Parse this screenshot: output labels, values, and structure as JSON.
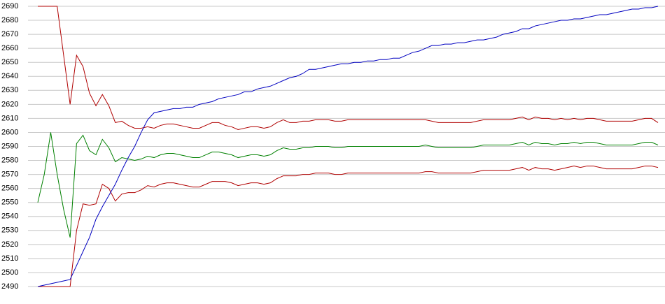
{
  "chart_data": {
    "type": "line",
    "categories": [
      null,
      null,
      null,
      null,
      null,
      null,
      null,
      null,
      null,
      null,
      null,
      null,
      null,
      null,
      null,
      null,
      null,
      null,
      null,
      null,
      null,
      null,
      null,
      null,
      null,
      null,
      null,
      null,
      null,
      null,
      null,
      null,
      null,
      null,
      null,
      null,
      null,
      null,
      null,
      null,
      null,
      null,
      null,
      null,
      null,
      null,
      null,
      null,
      null,
      null,
      null,
      null,
      null,
      null,
      null,
      null,
      null,
      null,
      null,
      null,
      null,
      null,
      null,
      null,
      null,
      null,
      null,
      null,
      null,
      null,
      null,
      null,
      null,
      null,
      null,
      null,
      null,
      null,
      null,
      null,
      null,
      null,
      null,
      null,
      null,
      null,
      null,
      null,
      null,
      null,
      null,
      null,
      null,
      null,
      null,
      null,
      null
    ],
    "series": [
      {
        "color": "#b00000",
        "values": [
          2690,
          2690,
          2690,
          2690,
          2655,
          2620,
          2655,
          2647,
          2628,
          2619,
          2627,
          2619,
          2607,
          2608,
          2605,
          2603,
          2603,
          2604,
          2603,
          2605,
          2606,
          2606,
          2605,
          2604,
          2603,
          2603,
          2605,
          2607,
          2607,
          2605,
          2604,
          2602,
          2603,
          2604,
          2604,
          2603,
          2604,
          2607,
          2609,
          2607,
          2607,
          2608,
          2608,
          2609,
          2609,
          2609,
          2608,
          2608,
          2609,
          2609,
          2609,
          2609,
          2609,
          2609,
          2609,
          2609,
          2609,
          2609,
          2609,
          2609,
          2609,
          2608,
          2607,
          2607,
          2607,
          2607,
          2607,
          2607,
          2608,
          2609,
          2609,
          2609,
          2609,
          2609,
          2610,
          2611,
          2609,
          2611,
          2610,
          2610,
          2609,
          2610,
          2609,
          2610,
          2609,
          2610,
          2610,
          2609,
          2608,
          2608,
          2608,
          2608,
          2608,
          2609,
          2610,
          2610,
          2607
        ]
      },
      {
        "color": "#008000",
        "values": [
          2550,
          2570,
          2600,
          2570,
          2545,
          2525,
          2592,
          2598,
          2587,
          2584,
          2595,
          2589,
          2579,
          2582,
          2581,
          2580,
          2581,
          2583,
          2582,
          2584,
          2585,
          2585,
          2584,
          2583,
          2582,
          2582,
          2584,
          2586,
          2586,
          2585,
          2584,
          2582,
          2583,
          2584,
          2584,
          2583,
          2584,
          2587,
          2589,
          2588,
          2588,
          2589,
          2589,
          2590,
          2590,
          2590,
          2589,
          2589,
          2590,
          2590,
          2590,
          2590,
          2590,
          2590,
          2590,
          2590,
          2590,
          2590,
          2590,
          2590,
          2591,
          2590,
          2589,
          2589,
          2589,
          2589,
          2589,
          2589,
          2590,
          2591,
          2591,
          2591,
          2591,
          2591,
          2592,
          2593,
          2591,
          2593,
          2592,
          2592,
          2591,
          2592,
          2592,
          2593,
          2592,
          2593,
          2593,
          2592,
          2591,
          2591,
          2591,
          2591,
          2591,
          2592,
          2593,
          2593,
          2591
        ]
      },
      {
        "color": "#b00000",
        "values": [
          2490,
          2490,
          2490,
          2490,
          2490,
          2490,
          2530,
          2549,
          2548,
          2549,
          2563,
          2560,
          2551,
          2556,
          2557,
          2557,
          2559,
          2562,
          2561,
          2563,
          2564,
          2564,
          2563,
          2562,
          2561,
          2561,
          2563,
          2565,
          2565,
          2565,
          2564,
          2562,
          2563,
          2564,
          2564,
          2563,
          2564,
          2567,
          2569,
          2569,
          2569,
          2570,
          2570,
          2571,
          2571,
          2571,
          2570,
          2570,
          2571,
          2571,
          2571,
          2571,
          2571,
          2571,
          2571,
          2571,
          2571,
          2571,
          2571,
          2571,
          2572,
          2572,
          2571,
          2571,
          2571,
          2571,
          2571,
          2571,
          2572,
          2573,
          2573,
          2573,
          2573,
          2573,
          2574,
          2575,
          2573,
          2575,
          2574,
          2574,
          2573,
          2574,
          2575,
          2576,
          2575,
          2576,
          2576,
          2575,
          2574,
          2574,
          2574,
          2574,
          2574,
          2575,
          2576,
          2576,
          2575
        ]
      },
      {
        "color": "#0000c0",
        "values": [
          2490,
          2491,
          2492,
          2493,
          2494,
          2495,
          2505,
          2515,
          2525,
          2538,
          2547,
          2555,
          2563,
          2573,
          2582,
          2590,
          2600,
          2609,
          2614,
          2615,
          2616,
          2617,
          2617,
          2618,
          2618,
          2620,
          2621,
          2622,
          2624,
          2625,
          2626,
          2627,
          2629,
          2629,
          2631,
          2632,
          2633,
          2635,
          2637,
          2639,
          2640,
          2642,
          2645,
          2645,
          2646,
          2647,
          2648,
          2649,
          2649,
          2650,
          2650,
          2651,
          2651,
          2652,
          2652,
          2653,
          2653,
          2655,
          2657,
          2658,
          2660,
          2662,
          2662,
          2663,
          2663,
          2664,
          2664,
          2665,
          2666,
          2666,
          2667,
          2668,
          2670,
          2671,
          2672,
          2674,
          2674,
          2676,
          2677,
          2678,
          2679,
          2680,
          2680,
          2681,
          2681,
          2682,
          2683,
          2684,
          2684,
          2685,
          2686,
          2687,
          2688,
          2688,
          2689,
          2689,
          2690
        ]
      }
    ],
    "ylim": [
      2490,
      2690
    ],
    "yticks": [
      2490,
      2500,
      2510,
      2520,
      2530,
      2540,
      2550,
      2560,
      2570,
      2580,
      2590,
      2600,
      2610,
      2620,
      2630,
      2640,
      2650,
      2660,
      2670,
      2680,
      2690
    ],
    "grid": true
  }
}
